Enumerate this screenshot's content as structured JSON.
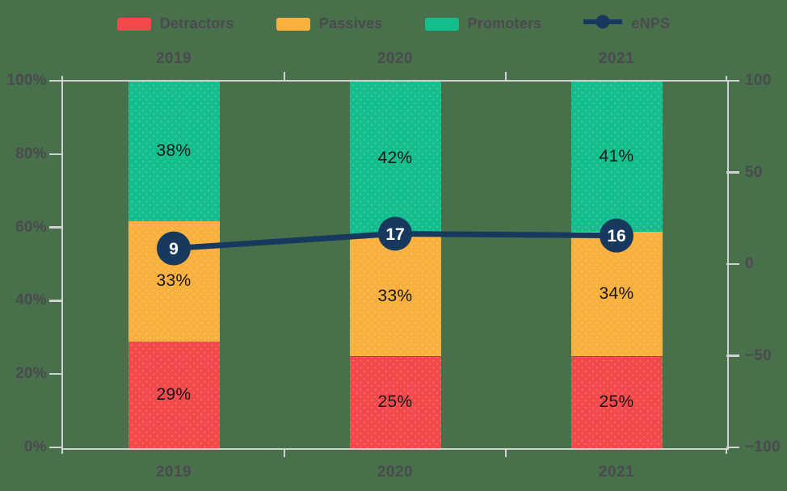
{
  "colors": {
    "background": "#48704a",
    "axis_line": "#d2d1d3",
    "axis_text": "#4b4a50",
    "bar_label_text": "#15161a",
    "marker_text": "#ffffff"
  },
  "legend": {
    "items": [
      {
        "label": "Detractors",
        "color": "#f4494c",
        "icon": "swatch"
      },
      {
        "label": "Passives",
        "color": "#f9b03d",
        "icon": "swatch"
      },
      {
        "label": "Promoters",
        "color": "#13bd8d",
        "icon": "swatch"
      },
      {
        "label": "eNPS",
        "color": "#18395e",
        "icon": "line-marker"
      }
    ]
  },
  "chart_data": {
    "type": "bar",
    "stacked": true,
    "orientation": "vertical",
    "title": "",
    "categories": [
      "2019",
      "2020",
      "2021"
    ],
    "series": [
      {
        "name": "Detractors",
        "color": "#f4494c",
        "values": [
          29,
          25,
          25
        ]
      },
      {
        "name": "Passives",
        "color": "#f9b03d",
        "values": [
          33,
          33,
          34
        ]
      },
      {
        "name": "Promoters",
        "color": "#13bd8d",
        "values": [
          38,
          42,
          41
        ]
      }
    ],
    "value_label_suffix": "%",
    "line_series": {
      "name": "eNPS",
      "color": "#18395e",
      "values": [
        9,
        17,
        16
      ],
      "axis": "right"
    },
    "left_axis": {
      "range": [
        0,
        100
      ],
      "ticks": [
        {
          "label": "100%",
          "value": 100
        },
        {
          "label": "80%",
          "value": 80
        },
        {
          "label": "60%",
          "value": 60
        },
        {
          "label": "40%",
          "value": 40
        },
        {
          "label": "20%",
          "value": 20
        },
        {
          "label": "0%",
          "value": 0
        }
      ]
    },
    "right_axis": {
      "range": [
        -100,
        100
      ],
      "ticks": [
        {
          "label": "100",
          "value": 100
        },
        {
          "label": "50",
          "value": 50
        },
        {
          "label": "0",
          "value": 0
        },
        {
          "label": "−50",
          "value": -50
        },
        {
          "label": "−100",
          "value": -100
        }
      ]
    },
    "x_labels_position": "top-and-bottom",
    "legend_position": "top",
    "grid": false
  }
}
